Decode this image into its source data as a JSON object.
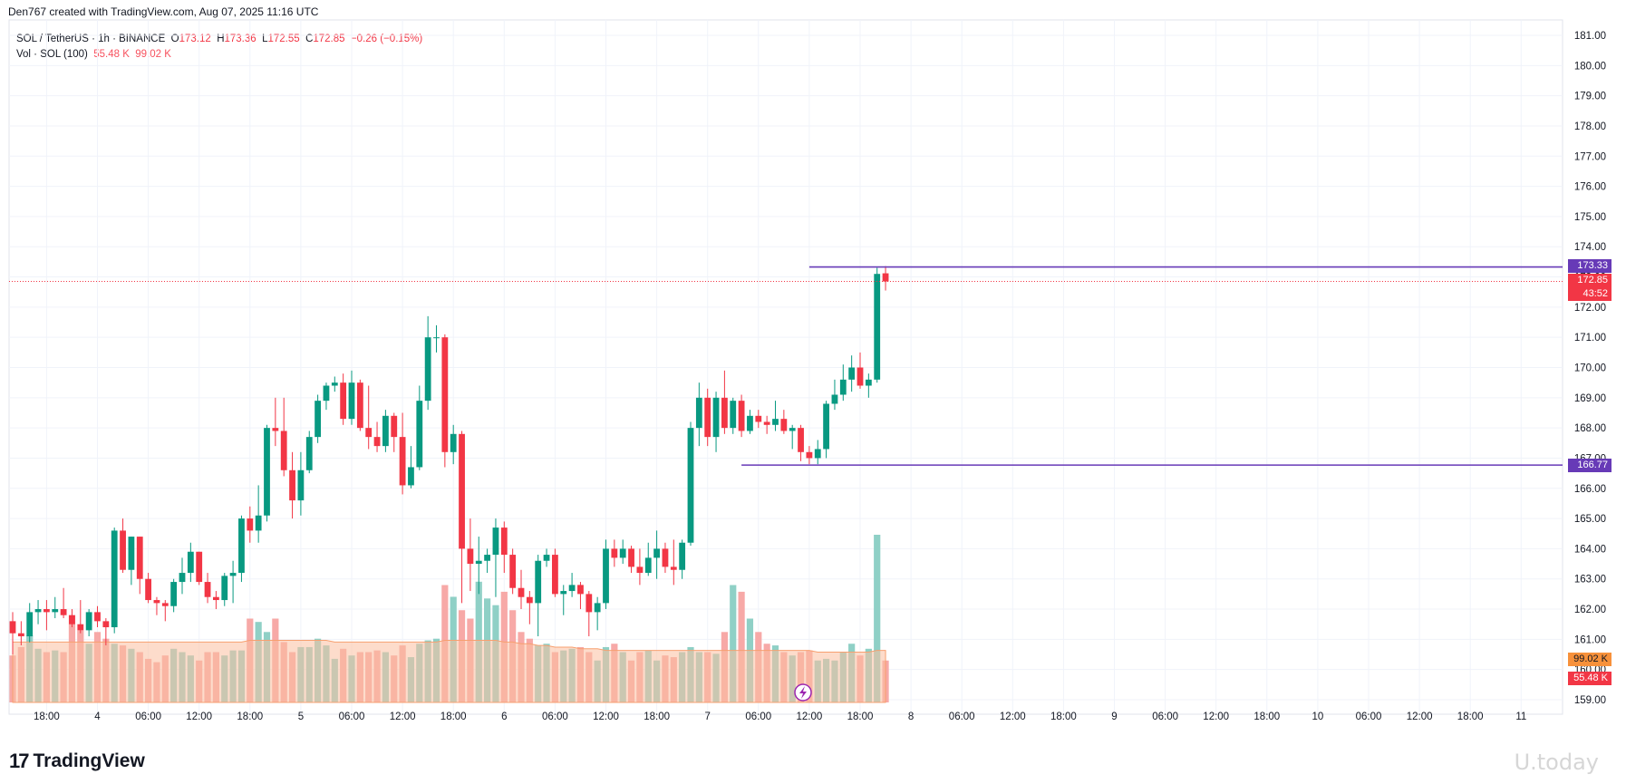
{
  "header": {
    "attribution": "Den767 created with TradingView.com, Aug 07, 2025 11:16 UTC"
  },
  "legend": {
    "symbol": "SOL / TetherUS · 1h · BINANCE",
    "o_label": "O",
    "o": "173.12",
    "h_label": "H",
    "h": "173.36",
    "l_label": "L",
    "l": "172.55",
    "c_label": "C",
    "c": "172.85",
    "change": "−0.26 (−0.15%)",
    "vol_label": "Vol · SOL (100)",
    "vol": "55.48 K",
    "vol_ma": "99.02 K"
  },
  "price_labels": {
    "level_high": "173.33",
    "last_price": "172.85",
    "countdown": "43:52",
    "level_low": "166.77",
    "vol_ma": "99.02 K",
    "vol": "55.48 K"
  },
  "colors": {
    "up": "#089981",
    "down": "#f23645",
    "vol_up": "#8fd0c6",
    "vol_down": "#f7a9a7",
    "vol_ma": "#fbc0a0",
    "level": "#673ab7",
    "last": "#f23645"
  },
  "footer": {
    "brand": "TradingView",
    "watermark": "U.today"
  },
  "chart_data": {
    "type": "candlestick",
    "interval": "1h",
    "y_ticks": [
      "159.00",
      "160.00",
      "161.00",
      "162.00",
      "163.00",
      "164.00",
      "165.00",
      "166.00",
      "167.00",
      "168.00",
      "169.00",
      "170.00",
      "171.00",
      "172.00",
      "173.00",
      "174.00",
      "175.00",
      "176.00",
      "177.00",
      "178.00",
      "179.00",
      "180.00",
      "181.00"
    ],
    "ylim": [
      159.0,
      181.0
    ],
    "x_ticks": [
      {
        "label": "18:00",
        "i": 4
      },
      {
        "label": "4",
        "i": 10
      },
      {
        "label": "06:00",
        "i": 16
      },
      {
        "label": "12:00",
        "i": 22
      },
      {
        "label": "18:00",
        "i": 28
      },
      {
        "label": "5",
        "i": 34
      },
      {
        "label": "06:00",
        "i": 40
      },
      {
        "label": "12:00",
        "i": 46
      },
      {
        "label": "18:00",
        "i": 52
      },
      {
        "label": "6",
        "i": 58
      },
      {
        "label": "06:00",
        "i": 64
      },
      {
        "label": "12:00",
        "i": 70
      },
      {
        "label": "18:00",
        "i": 76
      },
      {
        "label": "7",
        "i": 82
      },
      {
        "label": "06:00",
        "i": 88
      },
      {
        "label": "12:00",
        "i": 94
      },
      {
        "label": "18:00",
        "i": 100
      },
      {
        "label": "8",
        "i": 106
      },
      {
        "label": "06:00",
        "i": 112
      },
      {
        "label": "12:00",
        "i": 118
      },
      {
        "label": "18:00",
        "i": 124
      },
      {
        "label": "9",
        "i": 130
      },
      {
        "label": "06:00",
        "i": 136
      },
      {
        "label": "12:00",
        "i": 142
      },
      {
        "label": "18:00",
        "i": 148
      },
      {
        "label": "10",
        "i": 154
      },
      {
        "label": "06:00",
        "i": 160
      },
      {
        "label": "12:00",
        "i": 166
      },
      {
        "label": "18:00",
        "i": 172
      },
      {
        "label": "11",
        "i": 178
      }
    ],
    "candles": [
      {
        "o": 161.6,
        "h": 161.9,
        "l": 160.5,
        "c": 161.2
      },
      {
        "o": 161.2,
        "h": 161.6,
        "l": 160.8,
        "c": 161.1
      },
      {
        "o": 161.1,
        "h": 162.2,
        "l": 160.9,
        "c": 161.9
      },
      {
        "o": 161.9,
        "h": 162.3,
        "l": 161.5,
        "c": 162.0
      },
      {
        "o": 162.0,
        "h": 162.3,
        "l": 161.3,
        "c": 161.9
      },
      {
        "o": 161.9,
        "h": 162.4,
        "l": 161.7,
        "c": 162.0
      },
      {
        "o": 162.0,
        "h": 162.7,
        "l": 161.7,
        "c": 161.8
      },
      {
        "o": 161.8,
        "h": 162.0,
        "l": 161.4,
        "c": 161.5
      },
      {
        "o": 161.5,
        "h": 162.3,
        "l": 161.2,
        "c": 161.3
      },
      {
        "o": 161.3,
        "h": 162.0,
        "l": 161.1,
        "c": 161.9
      },
      {
        "o": 161.9,
        "h": 162.1,
        "l": 161.4,
        "c": 161.6
      },
      {
        "o": 161.6,
        "h": 161.7,
        "l": 160.8,
        "c": 161.4
      },
      {
        "o": 161.4,
        "h": 164.7,
        "l": 161.2,
        "c": 164.6
      },
      {
        "o": 164.6,
        "h": 165.0,
        "l": 163.2,
        "c": 163.3
      },
      {
        "o": 163.3,
        "h": 164.4,
        "l": 162.8,
        "c": 164.4
      },
      {
        "o": 164.4,
        "h": 164.4,
        "l": 162.5,
        "c": 163.0
      },
      {
        "o": 163.0,
        "h": 163.2,
        "l": 162.2,
        "c": 162.3
      },
      {
        "o": 162.3,
        "h": 162.4,
        "l": 161.8,
        "c": 162.2
      },
      {
        "o": 162.2,
        "h": 162.3,
        "l": 161.6,
        "c": 162.1
      },
      {
        "o": 162.1,
        "h": 163.0,
        "l": 161.9,
        "c": 162.9
      },
      {
        "o": 162.9,
        "h": 163.7,
        "l": 162.5,
        "c": 163.2
      },
      {
        "o": 163.2,
        "h": 164.2,
        "l": 162.9,
        "c": 163.9
      },
      {
        "o": 163.9,
        "h": 163.9,
        "l": 162.8,
        "c": 162.9
      },
      {
        "o": 162.9,
        "h": 163.2,
        "l": 162.2,
        "c": 162.4
      },
      {
        "o": 162.4,
        "h": 162.6,
        "l": 162.0,
        "c": 162.3
      },
      {
        "o": 162.3,
        "h": 163.2,
        "l": 162.1,
        "c": 163.1
      },
      {
        "o": 163.1,
        "h": 163.6,
        "l": 162.2,
        "c": 163.2
      },
      {
        "o": 163.2,
        "h": 165.1,
        "l": 162.9,
        "c": 165.0
      },
      {
        "o": 165.0,
        "h": 165.4,
        "l": 164.2,
        "c": 164.6
      },
      {
        "o": 164.6,
        "h": 166.1,
        "l": 164.2,
        "c": 165.1
      },
      {
        "o": 165.1,
        "h": 168.1,
        "l": 164.9,
        "c": 168.0
      },
      {
        "o": 168.0,
        "h": 169.0,
        "l": 167.4,
        "c": 167.9
      },
      {
        "o": 167.9,
        "h": 169.0,
        "l": 166.4,
        "c": 166.6
      },
      {
        "o": 166.6,
        "h": 167.2,
        "l": 165.0,
        "c": 165.6
      },
      {
        "o": 165.6,
        "h": 167.2,
        "l": 165.1,
        "c": 166.6
      },
      {
        "o": 166.6,
        "h": 167.9,
        "l": 166.5,
        "c": 167.7
      },
      {
        "o": 167.7,
        "h": 169.1,
        "l": 167.5,
        "c": 168.9
      },
      {
        "o": 168.9,
        "h": 169.5,
        "l": 168.6,
        "c": 169.4
      },
      {
        "o": 169.4,
        "h": 169.7,
        "l": 169.2,
        "c": 169.5
      },
      {
        "o": 169.5,
        "h": 169.8,
        "l": 168.1,
        "c": 168.3
      },
      {
        "o": 168.3,
        "h": 169.9,
        "l": 168.1,
        "c": 169.5
      },
      {
        "o": 169.5,
        "h": 169.6,
        "l": 167.9,
        "c": 168.0
      },
      {
        "o": 168.0,
        "h": 169.4,
        "l": 167.3,
        "c": 167.7
      },
      {
        "o": 167.7,
        "h": 168.2,
        "l": 167.2,
        "c": 167.4
      },
      {
        "o": 167.4,
        "h": 168.6,
        "l": 167.2,
        "c": 168.4
      },
      {
        "o": 168.4,
        "h": 168.5,
        "l": 167.2,
        "c": 167.7
      },
      {
        "o": 167.7,
        "h": 168.5,
        "l": 165.8,
        "c": 166.1
      },
      {
        "o": 166.1,
        "h": 167.4,
        "l": 166.0,
        "c": 166.7
      },
      {
        "o": 166.7,
        "h": 169.4,
        "l": 166.6,
        "c": 168.9
      },
      {
        "o": 168.9,
        "h": 171.7,
        "l": 168.6,
        "c": 171.0
      },
      {
        "o": 171.0,
        "h": 171.4,
        "l": 170.5,
        "c": 171.0
      },
      {
        "o": 171.0,
        "h": 171.1,
        "l": 166.7,
        "c": 167.2
      },
      {
        "o": 167.2,
        "h": 168.1,
        "l": 166.8,
        "c": 167.8
      },
      {
        "o": 167.8,
        "h": 167.9,
        "l": 162.2,
        "c": 164.0
      },
      {
        "o": 164.0,
        "h": 165.0,
        "l": 162.6,
        "c": 163.5
      },
      {
        "o": 163.5,
        "h": 164.4,
        "l": 162.5,
        "c": 163.6
      },
      {
        "o": 163.6,
        "h": 164.0,
        "l": 163.2,
        "c": 163.8
      },
      {
        "o": 163.8,
        "h": 165.0,
        "l": 162.4,
        "c": 164.7
      },
      {
        "o": 164.7,
        "h": 164.9,
        "l": 163.2,
        "c": 163.8
      },
      {
        "o": 163.8,
        "h": 164.0,
        "l": 162.5,
        "c": 162.7
      },
      {
        "o": 162.7,
        "h": 163.3,
        "l": 162.0,
        "c": 162.4
      },
      {
        "o": 162.4,
        "h": 162.6,
        "l": 161.5,
        "c": 162.2
      },
      {
        "o": 162.2,
        "h": 163.8,
        "l": 161.1,
        "c": 163.6
      },
      {
        "o": 163.6,
        "h": 164.0,
        "l": 163.4,
        "c": 163.8
      },
      {
        "o": 163.8,
        "h": 164.0,
        "l": 162.4,
        "c": 162.5
      },
      {
        "o": 162.5,
        "h": 162.8,
        "l": 161.8,
        "c": 162.6
      },
      {
        "o": 162.6,
        "h": 163.2,
        "l": 162.4,
        "c": 162.8
      },
      {
        "o": 162.8,
        "h": 162.9,
        "l": 162.0,
        "c": 162.5
      },
      {
        "o": 162.5,
        "h": 162.6,
        "l": 161.1,
        "c": 161.9
      },
      {
        "o": 161.9,
        "h": 162.4,
        "l": 161.3,
        "c": 162.2
      },
      {
        "o": 162.2,
        "h": 164.3,
        "l": 162.0,
        "c": 164.0
      },
      {
        "o": 164.0,
        "h": 164.3,
        "l": 163.4,
        "c": 163.7
      },
      {
        "o": 163.7,
        "h": 164.3,
        "l": 163.5,
        "c": 164.0
      },
      {
        "o": 164.0,
        "h": 164.1,
        "l": 163.2,
        "c": 163.4
      },
      {
        "o": 163.4,
        "h": 164.0,
        "l": 162.8,
        "c": 163.2
      },
      {
        "o": 163.2,
        "h": 164.2,
        "l": 163.1,
        "c": 163.7
      },
      {
        "o": 163.7,
        "h": 164.6,
        "l": 163.0,
        "c": 164.0
      },
      {
        "o": 164.0,
        "h": 164.2,
        "l": 163.2,
        "c": 163.4
      },
      {
        "o": 163.4,
        "h": 164.3,
        "l": 162.8,
        "c": 163.3
      },
      {
        "o": 163.3,
        "h": 164.3,
        "l": 163.0,
        "c": 164.2
      },
      {
        "o": 164.2,
        "h": 168.2,
        "l": 164.1,
        "c": 168.0
      },
      {
        "o": 168.0,
        "h": 169.5,
        "l": 167.4,
        "c": 169.0
      },
      {
        "o": 169.0,
        "h": 169.3,
        "l": 167.4,
        "c": 167.7
      },
      {
        "o": 167.7,
        "h": 169.2,
        "l": 167.2,
        "c": 169.0
      },
      {
        "o": 169.0,
        "h": 169.9,
        "l": 167.8,
        "c": 168.0
      },
      {
        "o": 168.0,
        "h": 169.0,
        "l": 167.8,
        "c": 168.9
      },
      {
        "o": 168.9,
        "h": 169.1,
        "l": 167.7,
        "c": 167.9
      },
      {
        "o": 167.9,
        "h": 168.6,
        "l": 167.8,
        "c": 168.4
      },
      {
        "o": 168.4,
        "h": 168.6,
        "l": 168.0,
        "c": 168.2
      },
      {
        "o": 168.2,
        "h": 168.4,
        "l": 167.8,
        "c": 168.1
      },
      {
        "o": 168.1,
        "h": 168.9,
        "l": 167.9,
        "c": 168.3
      },
      {
        "o": 168.3,
        "h": 168.6,
        "l": 167.8,
        "c": 167.9
      },
      {
        "o": 167.9,
        "h": 168.1,
        "l": 167.3,
        "c": 168.0
      },
      {
        "o": 168.0,
        "h": 168.1,
        "l": 166.9,
        "c": 167.2
      },
      {
        "o": 167.2,
        "h": 167.4,
        "l": 166.8,
        "c": 167.0
      },
      {
        "o": 167.0,
        "h": 167.6,
        "l": 166.8,
        "c": 167.3
      },
      {
        "o": 167.3,
        "h": 168.9,
        "l": 167.0,
        "c": 168.8
      },
      {
        "o": 168.8,
        "h": 169.6,
        "l": 168.6,
        "c": 169.1
      },
      {
        "o": 169.1,
        "h": 170.1,
        "l": 168.9,
        "c": 169.6
      },
      {
        "o": 169.6,
        "h": 170.4,
        "l": 169.2,
        "c": 170.0
      },
      {
        "o": 170.0,
        "h": 170.5,
        "l": 169.3,
        "c": 169.4
      },
      {
        "o": 169.4,
        "h": 169.8,
        "l": 169.0,
        "c": 169.6
      },
      {
        "o": 169.6,
        "h": 173.3,
        "l": 169.5,
        "c": 173.1
      },
      {
        "o": 173.12,
        "h": 173.36,
        "l": 172.55,
        "c": 172.85
      }
    ],
    "volume_note": "relative bar heights",
    "volumes": [
      0.28,
      0.33,
      0.4,
      0.32,
      0.3,
      0.31,
      0.3,
      0.52,
      0.43,
      0.35,
      0.42,
      0.38,
      0.35,
      0.34,
      0.32,
      0.3,
      0.26,
      0.24,
      0.28,
      0.32,
      0.3,
      0.28,
      0.25,
      0.3,
      0.3,
      0.28,
      0.31,
      0.31,
      0.5,
      0.48,
      0.42,
      0.5,
      0.36,
      0.3,
      0.33,
      0.33,
      0.38,
      0.34,
      0.26,
      0.32,
      0.28,
      0.3,
      0.3,
      0.31,
      0.3,
      0.28,
      0.34,
      0.27,
      0.35,
      0.37,
      0.38,
      0.7,
      0.63,
      0.55,
      0.5,
      0.72,
      0.62,
      0.58,
      0.66,
      0.55,
      0.42,
      0.38,
      0.34,
      0.35,
      0.3,
      0.31,
      0.32,
      0.33,
      0.3,
      0.25,
      0.33,
      0.35,
      0.3,
      0.25,
      0.3,
      0.31,
      0.25,
      0.28,
      0.27,
      0.3,
      0.33,
      0.3,
      0.3,
      0.29,
      0.42,
      0.7,
      0.66,
      0.5,
      0.42,
      0.35,
      0.34,
      0.3,
      0.28,
      0.3,
      0.31,
      0.25,
      0.26,
      0.25,
      0.3,
      0.35,
      0.28,
      0.32,
      1.0,
      0.25
    ],
    "vol_ma": [
      0.36,
      0.36,
      0.36,
      0.36,
      0.36,
      0.36,
      0.36,
      0.36,
      0.36,
      0.36,
      0.36,
      0.36,
      0.36,
      0.36,
      0.36,
      0.36,
      0.36,
      0.36,
      0.36,
      0.36,
      0.36,
      0.36,
      0.36,
      0.36,
      0.36,
      0.36,
      0.36,
      0.36,
      0.37,
      0.37,
      0.37,
      0.37,
      0.37,
      0.37,
      0.37,
      0.37,
      0.37,
      0.37,
      0.36,
      0.36,
      0.36,
      0.36,
      0.36,
      0.36,
      0.36,
      0.36,
      0.36,
      0.36,
      0.36,
      0.36,
      0.36,
      0.37,
      0.37,
      0.37,
      0.37,
      0.37,
      0.37,
      0.37,
      0.36,
      0.36,
      0.35,
      0.35,
      0.34,
      0.34,
      0.33,
      0.33,
      0.33,
      0.32,
      0.32,
      0.32,
      0.31,
      0.31,
      0.31,
      0.31,
      0.31,
      0.31,
      0.31,
      0.31,
      0.31,
      0.31,
      0.31,
      0.31,
      0.31,
      0.31,
      0.31,
      0.31,
      0.31,
      0.31,
      0.31,
      0.31,
      0.31,
      0.31,
      0.31,
      0.31,
      0.31,
      0.3,
      0.3,
      0.3,
      0.3,
      0.3,
      0.3,
      0.3,
      0.31,
      0.31
    ],
    "levels": [
      {
        "value": 173.33,
        "from_index": 94
      },
      {
        "value": 166.77,
        "from_index": 86
      }
    ],
    "last_price": 172.85
  }
}
